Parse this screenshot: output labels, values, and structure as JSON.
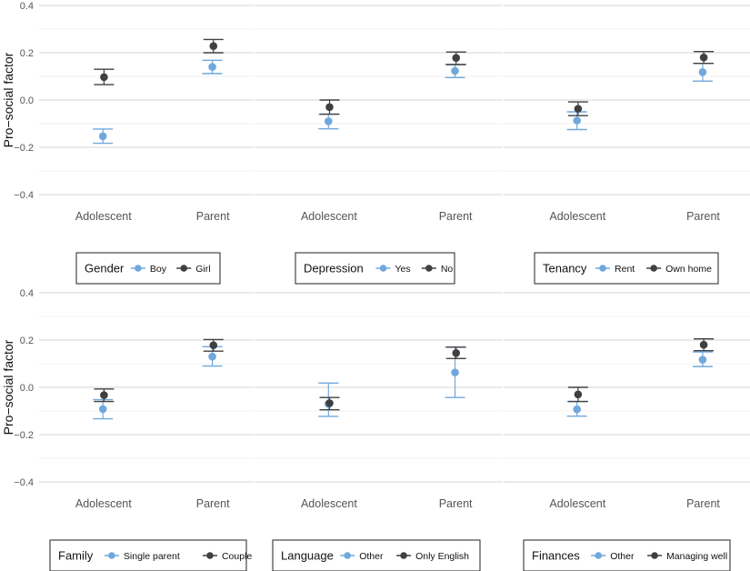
{
  "chart_data": [
    {
      "type": "scatter",
      "ylabel": "Pro−social factor",
      "ylim": [
        -0.4,
        0.4
      ],
      "yticks": [
        "0.4",
        "0.2",
        "0.0",
        "−0.2",
        "−0.4"
      ],
      "categories": [
        "Adolescent",
        "Parent"
      ],
      "legend_title": "Gender",
      "series": [
        {
          "name": "Boy",
          "color": "#6fa8dc",
          "values": [
            -0.153,
            0.14
          ],
          "lower": [
            -0.183,
            0.112
          ],
          "upper": [
            -0.123,
            0.168
          ]
        },
        {
          "name": "Girl",
          "color": "#404040",
          "values": [
            0.097,
            0.228
          ],
          "lower": [
            0.065,
            0.2
          ],
          "upper": [
            0.13,
            0.256
          ]
        }
      ]
    },
    {
      "type": "scatter",
      "ylabel": "",
      "ylim": [
        -0.4,
        0.4
      ],
      "yticks": [],
      "categories": [
        "Adolescent",
        "Parent"
      ],
      "legend_title": "Depression",
      "series": [
        {
          "name": "Yes",
          "color": "#6fa8dc",
          "values": [
            -0.09,
            0.123
          ],
          "lower": [
            -0.122,
            0.095
          ],
          "upper": [
            -0.06,
            0.15
          ]
        },
        {
          "name": "No",
          "color": "#404040",
          "values": [
            -0.03,
            0.178
          ],
          "lower": [
            -0.06,
            0.15
          ],
          "upper": [
            0.0,
            0.203
          ]
        }
      ]
    },
    {
      "type": "scatter",
      "ylabel": "",
      "ylim": [
        -0.4,
        0.4
      ],
      "yticks": [],
      "categories": [
        "Adolescent",
        "Parent"
      ],
      "legend_title": "Tenancy",
      "series": [
        {
          "name": "Rent",
          "color": "#6fa8dc",
          "values": [
            -0.087,
            0.118
          ],
          "lower": [
            -0.125,
            0.08
          ],
          "upper": [
            -0.05,
            0.155
          ]
        },
        {
          "name": "Own home",
          "color": "#404040",
          "values": [
            -0.037,
            0.18
          ],
          "lower": [
            -0.066,
            0.155
          ],
          "upper": [
            -0.008,
            0.205
          ]
        }
      ]
    },
    {
      "type": "scatter",
      "ylabel": "Pro−social factor",
      "ylim": [
        -0.4,
        0.4
      ],
      "yticks": [
        "0.4",
        "0.2",
        "0.0",
        "−0.2",
        "−0.4"
      ],
      "categories": [
        "Adolescent",
        "Parent"
      ],
      "legend_title": "Family",
      "series": [
        {
          "name": "Single parent",
          "color": "#6fa8dc",
          "values": [
            -0.092,
            0.13
          ],
          "lower": [
            -0.133,
            0.09
          ],
          "upper": [
            -0.052,
            0.172
          ]
        },
        {
          "name": "Couple",
          "color": "#404040",
          "values": [
            -0.033,
            0.178
          ],
          "lower": [
            -0.06,
            0.153
          ],
          "upper": [
            -0.007,
            0.202
          ]
        }
      ]
    },
    {
      "type": "scatter",
      "ylabel": "",
      "ylim": [
        -0.4,
        0.4
      ],
      "yticks": [],
      "categories": [
        "Adolescent",
        "Parent"
      ],
      "legend_title": "Language",
      "series": [
        {
          "name": "Other",
          "color": "#6fa8dc",
          "values": [
            -0.07,
            0.063
          ],
          "lower": [
            -0.123,
            -0.043
          ],
          "upper": [
            0.018,
            0.17
          ]
        },
        {
          "name": "Only English",
          "color": "#404040",
          "values": [
            -0.067,
            0.145
          ],
          "lower": [
            -0.095,
            0.122
          ],
          "upper": [
            -0.043,
            0.17
          ]
        }
      ]
    },
    {
      "type": "scatter",
      "ylabel": "",
      "ylim": [
        -0.4,
        0.4
      ],
      "yticks": [],
      "categories": [
        "Adolescent",
        "Parent"
      ],
      "legend_title": "Finances",
      "series": [
        {
          "name": "Other",
          "color": "#6fa8dc",
          "values": [
            -0.093,
            0.117
          ],
          "lower": [
            -0.122,
            0.088
          ],
          "upper": [
            -0.06,
            0.15
          ]
        },
        {
          "name": "Managing well",
          "color": "#404040",
          "values": [
            -0.03,
            0.18
          ],
          "lower": [
            -0.06,
            0.155
          ],
          "upper": [
            0.0,
            0.205
          ]
        }
      ]
    }
  ]
}
